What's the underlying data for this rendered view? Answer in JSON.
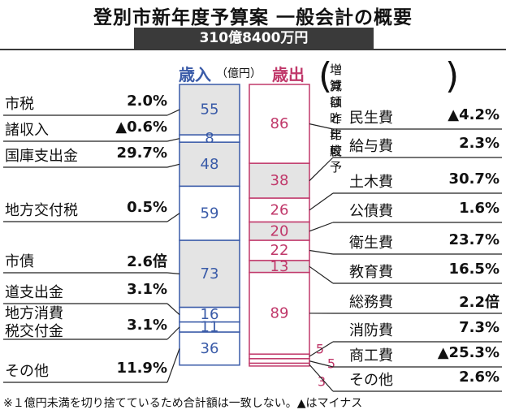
{
  "title": "登別市新年度予算案 一般会計の概要",
  "total": "310億8400万円",
  "revenue_header": "歳入",
  "unit": "（億円）",
  "expenditure_header": "歳出",
  "comparison_note_line1": "増減は昨年度予",
  "comparison_note_line2": "算額と比較",
  "footnote": "※１億円未満を切り捨てているため合計額は一致しない。▲はマイナス",
  "colors": {
    "revenue": "#3a5ba8",
    "expenditure": "#c0386a",
    "shade": "#e4e4e4"
  },
  "chart_data": [
    {
      "type": "bar",
      "name": "歳入",
      "categories": [
        "市税",
        "諸収入",
        "国庫支出金",
        "地方交付税",
        "市債",
        "道支出金",
        "地方消費税交付金",
        "その他"
      ],
      "labels": [
        "市税",
        "諸収入",
        "国庫支出金",
        "地方交付税",
        "市債",
        "道支出金",
        "地方消費\n税交付金",
        "その他"
      ],
      "values": [
        55,
        8,
        48,
        59,
        73,
        16,
        11,
        36
      ],
      "changes": [
        "2.0%",
        "▲0.6%",
        "29.7%",
        "0.5%",
        "2.6倍",
        "3.1%",
        "3.1%",
        "11.9%"
      ]
    },
    {
      "type": "bar",
      "name": "歳出",
      "categories": [
        "民生費",
        "給与費",
        "土木費",
        "公債費",
        "衛生費",
        "教育費",
        "総務費",
        "消防費",
        "商工費",
        "その他"
      ],
      "values": [
        86,
        38,
        26,
        20,
        22,
        13,
        89,
        5,
        5,
        3
      ],
      "changes": [
        "▲4.2%",
        "2.3%",
        "30.7%",
        "1.6%",
        "23.7%",
        "16.5%",
        "2.2倍",
        "7.3%",
        "▲25.3%",
        "2.6%"
      ]
    }
  ]
}
